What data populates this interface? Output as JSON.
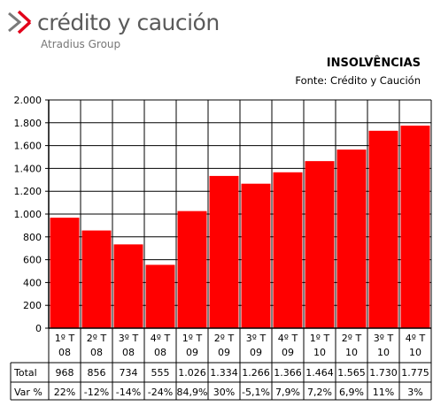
{
  "brand": {
    "name": "crédito y caución",
    "sub": "Atradius Group",
    "accent_color": "#e2001a",
    "logo_icon": "chevron-arrow-logo-icon"
  },
  "chart_data": {
    "type": "bar",
    "title": "INSOLVÊNCIAS",
    "subtitle": "Fonte: Crédito y Caución",
    "categories": [
      [
        "1º T",
        "08"
      ],
      [
        "2º T",
        "08"
      ],
      [
        "3º T",
        "08"
      ],
      [
        "4º T",
        "08"
      ],
      [
        "1º T",
        "09"
      ],
      [
        "2º T",
        "09"
      ],
      [
        "3º T",
        "09"
      ],
      [
        "4º T",
        "09"
      ],
      [
        "1º T",
        "10"
      ],
      [
        "2º T",
        "10"
      ],
      [
        "3º T",
        "10"
      ],
      [
        "4º T",
        "10"
      ]
    ],
    "values": [
      968,
      856,
      734,
      555,
      1026,
      1334,
      1266,
      1366,
      1464,
      1565,
      1730,
      1775
    ],
    "ylim": [
      0,
      2000
    ],
    "yticks": [
      0,
      200,
      400,
      600,
      800,
      1000,
      1200,
      1400,
      1600,
      1800,
      2000
    ],
    "ytick_labels": [
      "0",
      "200",
      "400",
      "600",
      "800",
      "1.000",
      "1.200",
      "1.400",
      "1.600",
      "1.800",
      "2.000"
    ],
    "bar_color": "#ff0000",
    "grid": true,
    "table": {
      "rows": [
        {
          "label": "Total",
          "cells": [
            "968",
            "856",
            "734",
            "555",
            "1.026",
            "1.334",
            "1.266",
            "1.366",
            "1.464",
            "1.565",
            "1.730",
            "1.775"
          ]
        },
        {
          "label": "Var %",
          "cells": [
            "22%",
            "-12%",
            "-14%",
            "-24%",
            "84,9%",
            "30%",
            "-5,1%",
            "7,9%",
            "7,2%",
            "6,9%",
            "11%",
            "3%"
          ]
        }
      ]
    }
  }
}
